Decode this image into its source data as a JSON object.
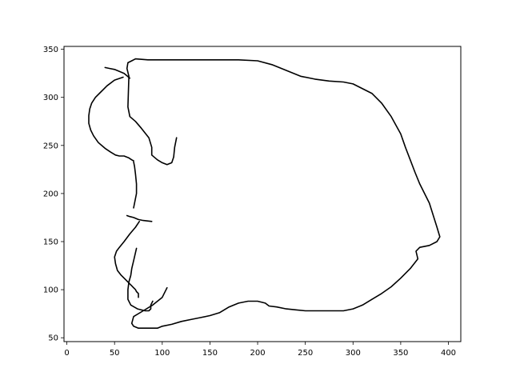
{
  "chart_data": {
    "type": "line",
    "title": "",
    "xlabel": "",
    "ylabel": "",
    "xlim": [
      -3,
      413
    ],
    "ylim": [
      46,
      353
    ],
    "xticks": [
      0,
      50,
      100,
      150,
      200,
      250,
      300,
      350,
      400
    ],
    "yticks": [
      50,
      100,
      150,
      200,
      250,
      300,
      350
    ],
    "grid": false,
    "line_color": "#000000",
    "series": [
      {
        "x": [
          65,
          63,
          64,
          68,
          72,
          85,
          100,
          120,
          150,
          180,
          200,
          215,
          230,
          245,
          260,
          275,
          290,
          300,
          310,
          320,
          330,
          340,
          350,
          355,
          360,
          365,
          370,
          380,
          388,
          391,
          388,
          380,
          370,
          366,
          368,
          360,
          350,
          340,
          330,
          320,
          310,
          300,
          290,
          280,
          270,
          260,
          250,
          240,
          230,
          220,
          212,
          208,
          200,
          190,
          180,
          170,
          160,
          150,
          140,
          130,
          120,
          110,
          100,
          95,
          90,
          82,
          75,
          70,
          68,
          70,
          80,
          90,
          100,
          105
        ],
        "y": [
          322,
          330,
          336,
          338,
          340,
          339,
          339,
          339,
          339,
          339,
          338,
          334,
          328,
          322,
          319,
          317,
          316,
          314,
          309,
          304,
          294,
          280,
          262,
          248,
          235,
          222,
          210,
          190,
          165,
          155,
          150,
          146,
          144,
          140,
          132,
          122,
          112,
          103,
          96,
          90,
          84,
          80,
          78,
          78,
          78,
          78,
          78,
          79,
          80,
          82,
          83,
          86,
          88,
          88,
          86,
          82,
          76,
          73,
          71,
          69,
          67,
          64,
          62,
          60,
          60,
          60,
          60,
          62,
          65,
          72,
          78,
          84,
          92,
          102
        ]
      },
      {
        "x": [
          65,
          64,
          66,
          72,
          78,
          86,
          89,
          89,
          95,
          100,
          105,
          110,
          112,
          113,
          115
        ],
        "y": [
          322,
          290,
          280,
          275,
          268,
          258,
          248,
          240,
          235,
          232,
          230,
          232,
          238,
          248,
          258
        ]
      },
      {
        "x": [
          76,
          72,
          66,
          60,
          55,
          52,
          50,
          51,
          53,
          57,
          62,
          66,
          68,
          70,
          72,
          73,
          75,
          75
        ],
        "y": [
          171,
          165,
          158,
          150,
          144,
          140,
          134,
          127,
          120,
          115,
          110,
          106,
          104,
          102,
          100,
          98,
          96,
          92
        ]
      },
      {
        "x": [
          89,
          80,
          75,
          70,
          66,
          63
        ],
        "y": [
          171,
          172,
          173,
          175,
          176,
          177
        ]
      },
      {
        "x": [
          73,
          70,
          68,
          67,
          65,
          64,
          64,
          67,
          74,
          82,
          86,
          88,
          88,
          90
        ],
        "y": [
          143,
          130,
          122,
          115,
          108,
          100,
          90,
          84,
          80,
          78,
          78,
          80,
          84,
          88
        ]
      },
      {
        "x": [
          59,
          50,
          42,
          36,
          30,
          26,
          24,
          23,
          23,
          25,
          28,
          33,
          40,
          46,
          51,
          55,
          60,
          65,
          68,
          70
        ],
        "y": [
          321,
          318,
          312,
          306,
          300,
          294,
          288,
          281,
          273,
          266,
          260,
          253,
          247,
          243,
          240,
          239,
          239,
          237,
          235,
          234
        ]
      },
      {
        "x": [
          70,
          71,
          72,
          73,
          73,
          71,
          70
        ],
        "y": [
          233,
          228,
          220,
          210,
          200,
          190,
          185
        ]
      },
      {
        "x": [
          66,
          60,
          55,
          50,
          45,
          40
        ],
        "y": [
          320,
          325,
          327,
          329,
          330,
          331
        ]
      }
    ]
  }
}
